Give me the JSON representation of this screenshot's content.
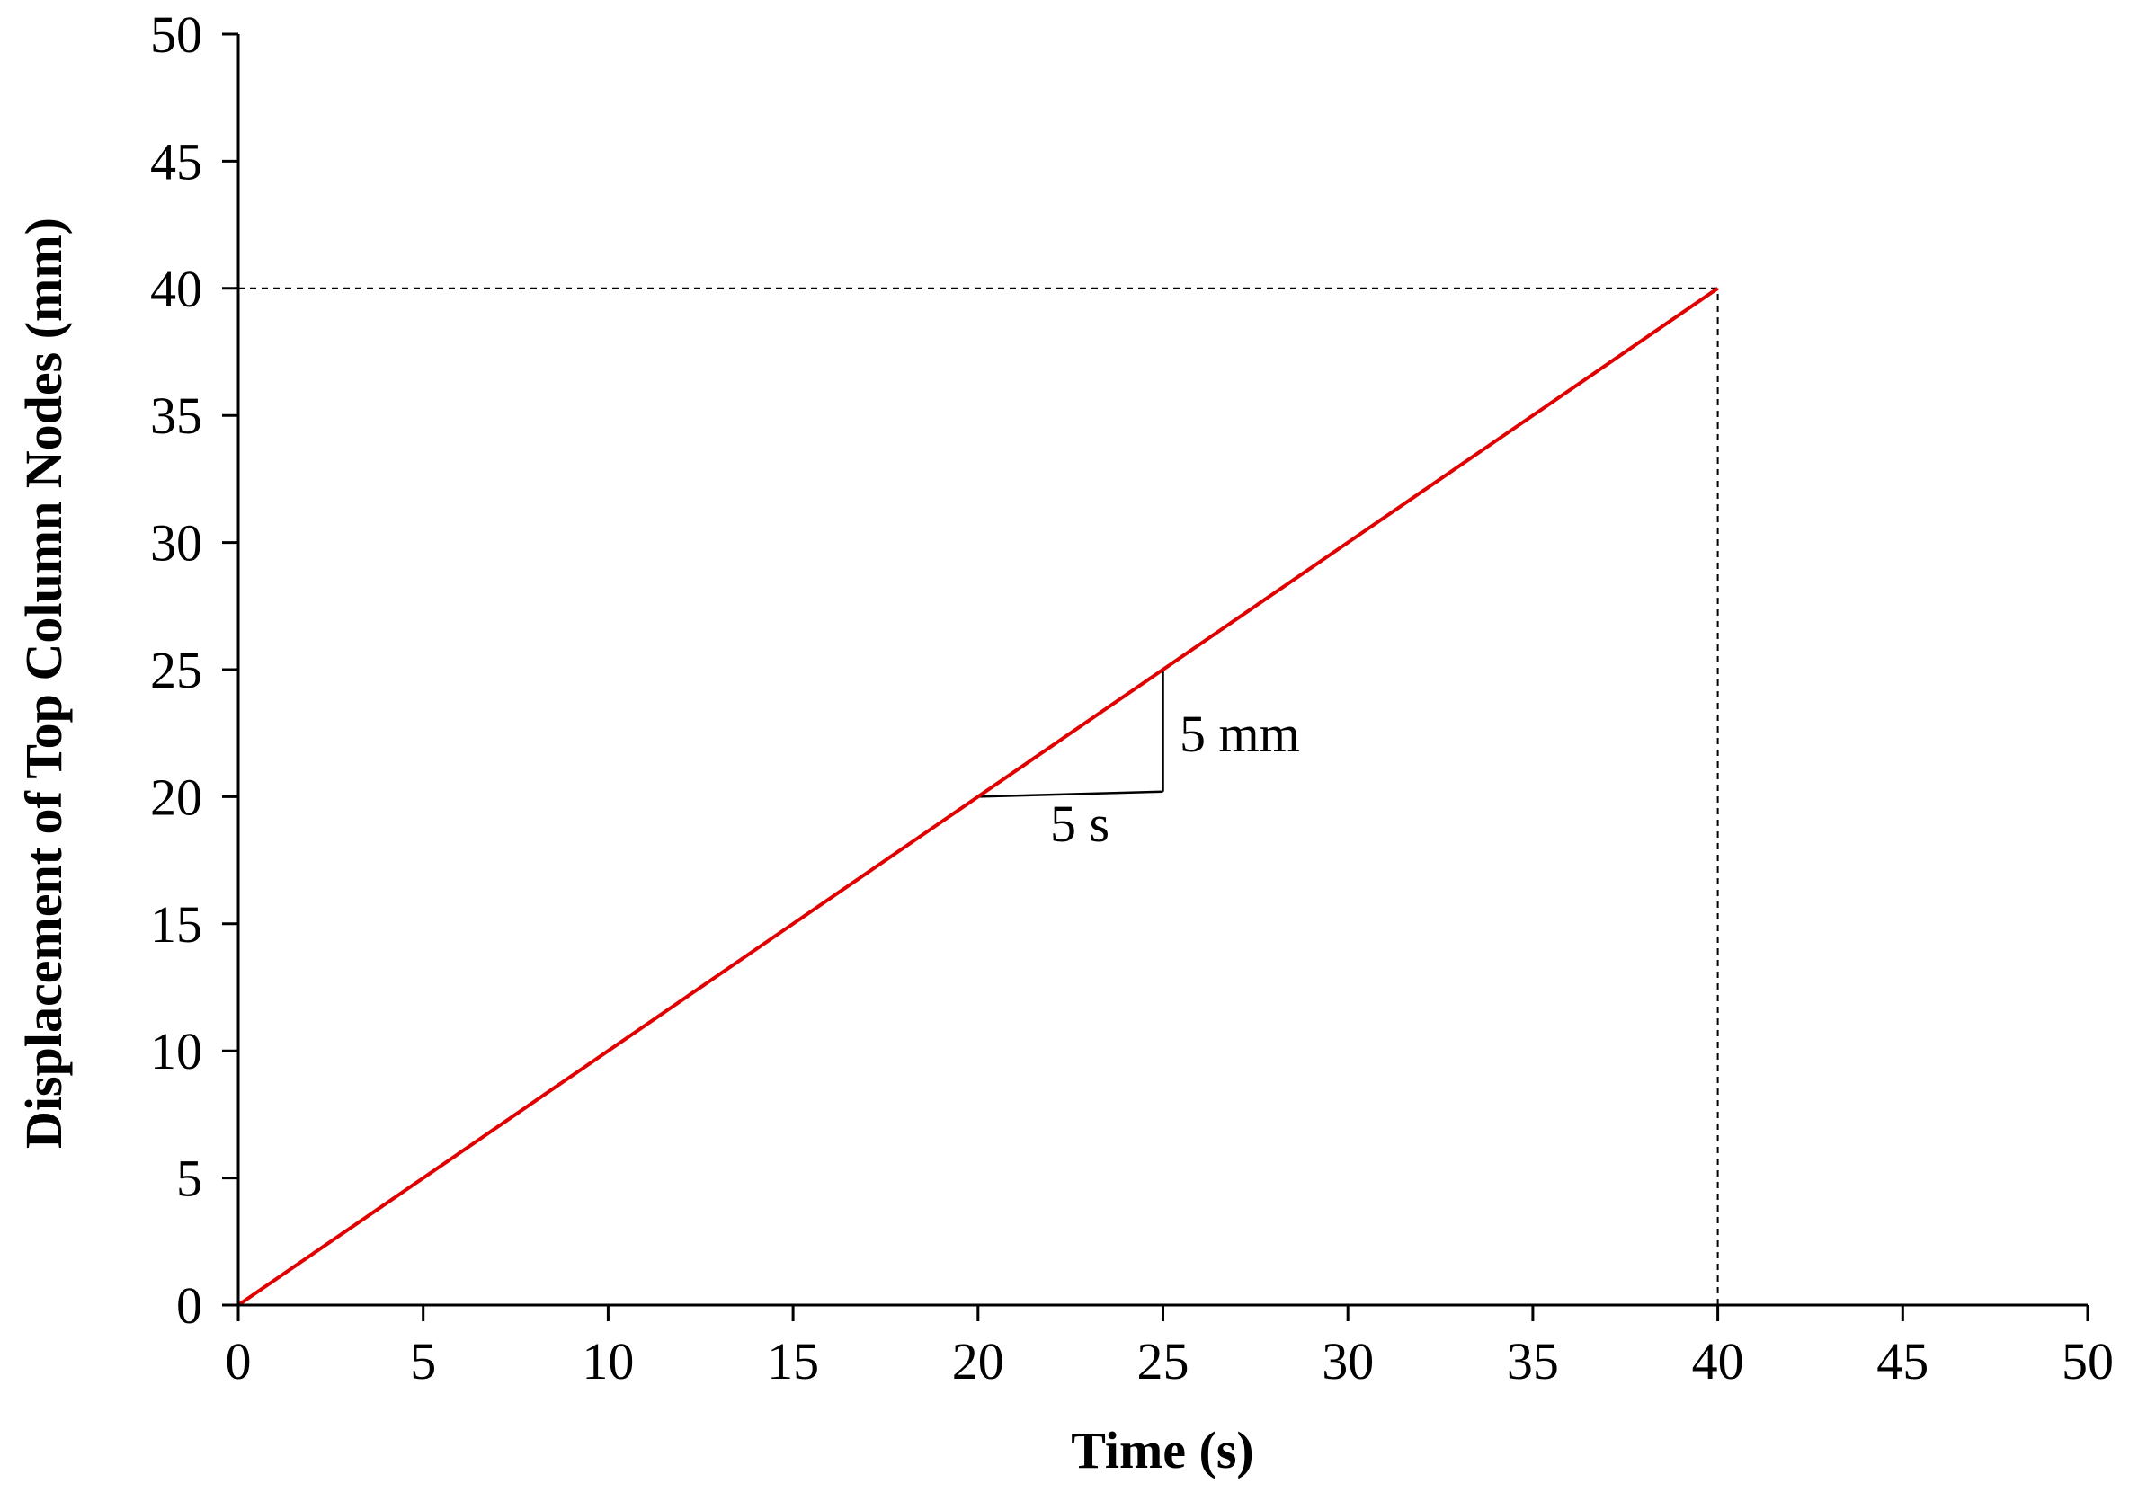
{
  "chart_data": {
    "type": "line",
    "title": "",
    "xlabel": "Time (s)",
    "ylabel": "Displacement of Top Column Nodes (mm)",
    "xlim": [
      0,
      50
    ],
    "ylim": [
      0,
      50
    ],
    "xticks": [
      0,
      5,
      10,
      15,
      20,
      25,
      30,
      35,
      40,
      45,
      50
    ],
    "yticks": [
      0,
      5,
      10,
      15,
      20,
      25,
      30,
      35,
      40,
      45,
      50
    ],
    "grid": false,
    "series": [
      {
        "x": [
          0,
          40
        ],
        "y": [
          0,
          40
        ],
        "color": "#e00000"
      }
    ],
    "reference_lines": [
      {
        "x": [
          0,
          40
        ],
        "y": [
          40,
          40
        ],
        "style": "dashed"
      },
      {
        "x": [
          40,
          40
        ],
        "y": [
          0,
          40
        ],
        "style": "dashed"
      }
    ],
    "slope_triangle": {
      "x": [
        20,
        25,
        25
      ],
      "y": [
        20,
        20.2,
        25
      ],
      "run_label": "5 s",
      "rise_label": "5 mm"
    }
  },
  "colors": {
    "line": "#e00000",
    "axis": "#000000"
  }
}
